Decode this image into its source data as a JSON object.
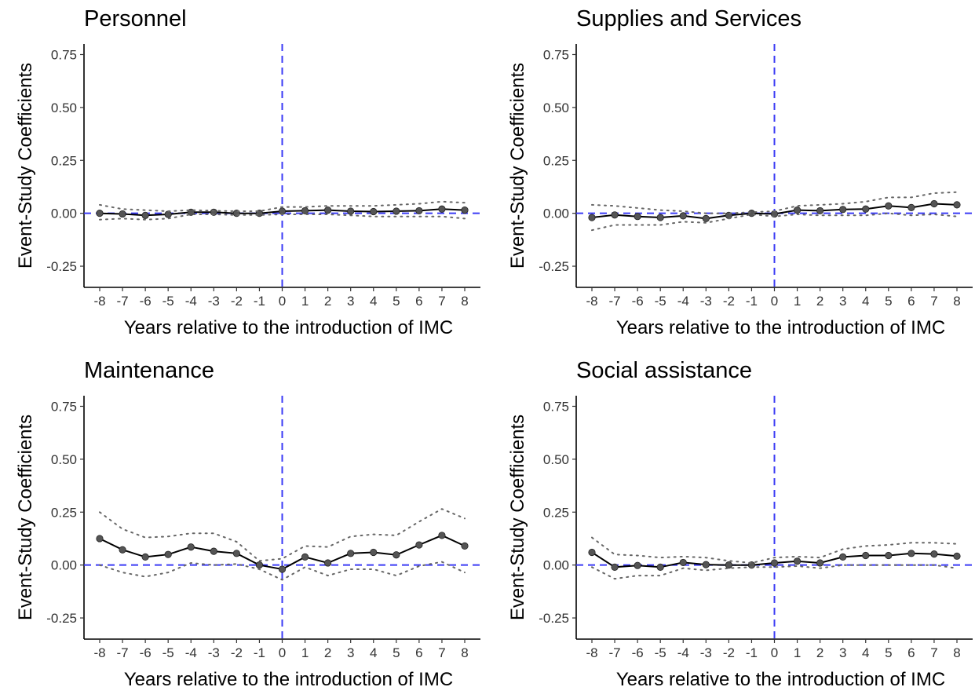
{
  "chart_data": [
    {
      "type": "line",
      "title": "Personnel",
      "xlabel": "Years relative to the introduction of IMC",
      "ylabel": "Event-Study Coefficients",
      "x": [
        -8,
        -7,
        -6,
        -5,
        -4,
        -3,
        -2,
        -1,
        0,
        1,
        2,
        3,
        4,
        5,
        6,
        7,
        8
      ],
      "x_ticks": [
        "-8",
        "-7",
        "-6",
        "-5",
        "-4",
        "-3",
        "-2",
        "-1",
        "0",
        "1",
        "2",
        "3",
        "4",
        "5",
        "6",
        "7",
        "8"
      ],
      "y_ticks": [
        "0.75",
        "0.50",
        "0.25",
        "0.00",
        "-0.25"
      ],
      "y_tick_values": [
        0.75,
        0.5,
        0.25,
        0,
        -0.25
      ],
      "ylim": [
        -0.35,
        0.8
      ],
      "reference_lines": {
        "horizontal_y": 0,
        "vertical_x": 0,
        "color": "#3b3bf5"
      },
      "series": [
        {
          "role": "estimate",
          "values": [
            0.0,
            -0.003,
            -0.01,
            -0.005,
            0.005,
            0.005,
            0.0,
            0.0,
            0.01,
            0.012,
            0.015,
            0.01,
            0.008,
            0.01,
            0.012,
            0.02,
            0.015
          ]
        },
        {
          "role": "upper-ci",
          "values": [
            0.04,
            0.02,
            0.015,
            0.01,
            0.015,
            0.012,
            0.01,
            0.01,
            0.03,
            0.03,
            0.035,
            0.035,
            0.035,
            0.04,
            0.045,
            0.055,
            0.05
          ]
        },
        {
          "role": "lower-ci",
          "values": [
            -0.03,
            -0.025,
            -0.03,
            -0.025,
            -0.005,
            -0.005,
            -0.008,
            -0.008,
            -0.005,
            -0.005,
            -0.005,
            -0.01,
            -0.015,
            -0.015,
            -0.015,
            -0.015,
            -0.025
          ]
        }
      ],
      "grid": false
    },
    {
      "type": "line",
      "title": "Supplies and Services",
      "xlabel": "Years relative to the introduction of IMC",
      "ylabel": "Event-Study Coefficients",
      "x": [
        -8,
        -7,
        -6,
        -5,
        -4,
        -3,
        -2,
        -1,
        0,
        1,
        2,
        3,
        4,
        5,
        6,
        7,
        8
      ],
      "x_ticks": [
        "-8",
        "-7",
        "-6",
        "-5",
        "-4",
        "-3",
        "-2",
        "-1",
        "0",
        "1",
        "2",
        "3",
        "4",
        "5",
        "6",
        "7",
        "8"
      ],
      "y_ticks": [
        "0.75",
        "0.50",
        "0.25",
        "0.00",
        "-0.25"
      ],
      "y_tick_values": [
        0.75,
        0.5,
        0.25,
        0,
        -0.25
      ],
      "ylim": [
        -0.35,
        0.8
      ],
      "reference_lines": {
        "horizontal_y": 0,
        "vertical_x": 0,
        "color": "#3b3bf5"
      },
      "series": [
        {
          "role": "estimate",
          "values": [
            -0.02,
            -0.008,
            -0.015,
            -0.02,
            -0.012,
            -0.025,
            -0.01,
            0.0,
            -0.003,
            0.015,
            0.012,
            0.018,
            0.02,
            0.035,
            0.027,
            0.045,
            0.04
          ]
        },
        {
          "role": "upper-ci",
          "values": [
            0.04,
            0.035,
            0.025,
            0.015,
            0.01,
            0.0,
            0.0,
            0.005,
            0.01,
            0.035,
            0.04,
            0.045,
            0.055,
            0.075,
            0.075,
            0.095,
            0.1
          ]
        },
        {
          "role": "lower-ci",
          "values": [
            -0.08,
            -0.055,
            -0.055,
            -0.055,
            -0.04,
            -0.045,
            -0.025,
            -0.005,
            -0.015,
            -0.005,
            -0.01,
            -0.01,
            -0.01,
            0.0,
            -0.01,
            -0.005,
            -0.015
          ]
        }
      ],
      "grid": false
    },
    {
      "type": "line",
      "title": "Maintenance",
      "xlabel": "Years relative to the introduction of IMC",
      "ylabel": "Event-Study Coefficients",
      "x": [
        -8,
        -7,
        -6,
        -5,
        -4,
        -3,
        -2,
        -1,
        0,
        1,
        2,
        3,
        4,
        5,
        6,
        7,
        8
      ],
      "x_ticks": [
        "-8",
        "-7",
        "-6",
        "-5",
        "-4",
        "-3",
        "-2",
        "-1",
        "0",
        "1",
        "2",
        "3",
        "4",
        "5",
        "6",
        "7",
        "8"
      ],
      "y_ticks": [
        "0.75",
        "0.50",
        "0.25",
        "0.00",
        "-0.25"
      ],
      "y_tick_values": [
        0.75,
        0.5,
        0.25,
        0,
        -0.25
      ],
      "ylim": [
        -0.35,
        0.8
      ],
      "reference_lines": {
        "horizontal_y": 0,
        "vertical_x": 0,
        "color": "#3b3bf5"
      },
      "series": [
        {
          "role": "estimate",
          "values": [
            0.125,
            0.072,
            0.038,
            0.05,
            0.085,
            0.065,
            0.055,
            0.0,
            -0.02,
            0.038,
            0.01,
            0.055,
            0.06,
            0.048,
            0.095,
            0.14,
            0.09
          ]
        },
        {
          "role": "upper-ci",
          "values": [
            0.25,
            0.17,
            0.13,
            0.135,
            0.15,
            0.15,
            0.11,
            0.02,
            0.03,
            0.09,
            0.085,
            0.135,
            0.145,
            0.14,
            0.205,
            0.265,
            0.22
          ]
        },
        {
          "role": "lower-ci",
          "values": [
            0.0,
            -0.035,
            -0.055,
            -0.035,
            0.01,
            0.0,
            0.005,
            -0.02,
            -0.07,
            -0.01,
            -0.05,
            -0.02,
            -0.02,
            -0.05,
            -0.005,
            0.015,
            -0.035
          ]
        }
      ],
      "grid": false
    },
    {
      "type": "line",
      "title": "Social assistance",
      "xlabel": "Years relative to the introduction of IMC",
      "ylabel": "Event-Study Coefficients",
      "x": [
        -8,
        -7,
        -6,
        -5,
        -4,
        -3,
        -2,
        -1,
        0,
        1,
        2,
        3,
        4,
        5,
        6,
        7,
        8
      ],
      "x_ticks": [
        "-8",
        "-7",
        "-6",
        "-5",
        "-4",
        "-3",
        "-2",
        "-1",
        "0",
        "1",
        "2",
        "3",
        "4",
        "5",
        "6",
        "7",
        "8"
      ],
      "y_ticks": [
        "0.75",
        "0.50",
        "0.25",
        "0.00",
        "-0.25"
      ],
      "y_tick_values": [
        0.75,
        0.5,
        0.25,
        0,
        -0.25
      ],
      "ylim": [
        -0.35,
        0.8
      ],
      "reference_lines": {
        "horizontal_y": 0,
        "vertical_x": 0,
        "color": "#3b3bf5"
      },
      "series": [
        {
          "role": "estimate",
          "values": [
            0.06,
            -0.01,
            -0.002,
            -0.01,
            0.012,
            0.002,
            0.0,
            0.0,
            0.01,
            0.018,
            0.01,
            0.038,
            0.045,
            0.045,
            0.055,
            0.052,
            0.042
          ]
        },
        {
          "role": "upper-ci",
          "values": [
            0.13,
            0.05,
            0.045,
            0.035,
            0.04,
            0.035,
            0.02,
            0.01,
            0.035,
            0.04,
            0.035,
            0.075,
            0.09,
            0.095,
            0.105,
            0.105,
            0.1
          ]
        },
        {
          "role": "lower-ci",
          "values": [
            -0.01,
            -0.065,
            -0.05,
            -0.05,
            -0.015,
            -0.025,
            -0.015,
            -0.01,
            -0.01,
            -0.005,
            -0.015,
            0.0,
            0.0,
            0.0,
            0.0,
            0.0,
            -0.015
          ]
        }
      ],
      "grid": false
    }
  ]
}
